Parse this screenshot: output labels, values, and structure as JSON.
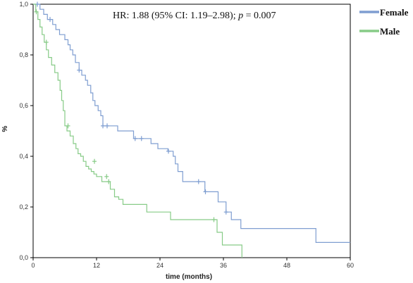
{
  "chart_data": {
    "type": "line",
    "subtype": "kaplan-meier step",
    "annotation_prefix": "HR: 1.88 (95% CI: 1.19–2.98); ",
    "annotation_p_symbol": "p",
    "annotation_p_value": " = 0.007",
    "xlabel": "time (months)",
    "ylabel": "%",
    "xlim": [
      0,
      60
    ],
    "ylim": [
      0,
      1
    ],
    "x_ticks": [
      0,
      12,
      24,
      36,
      48,
      60
    ],
    "x_tick_labels": [
      "0",
      "12",
      "24",
      "36",
      "48",
      "60"
    ],
    "y_ticks": [
      0,
      0.2,
      0.4,
      0.6,
      0.8,
      1.0
    ],
    "y_tick_labels": [
      "0,0",
      "0,2",
      "0,4",
      "0,6",
      "0,8",
      "1,0"
    ],
    "legend_position": "top-right, outside plot",
    "series": [
      {
        "name": "Female",
        "color": "#7f9ed1",
        "x": [
          0,
          0.8,
          1.3,
          2.0,
          2.7,
          3.7,
          4.3,
          5.0,
          6.0,
          6.6,
          7.0,
          7.5,
          8.0,
          8.7,
          9.2,
          9.9,
          10.3,
          10.9,
          11.3,
          11.7,
          12.3,
          12.8,
          13.2,
          14.5,
          16.0,
          19.0,
          20.0,
          20.8,
          22.3,
          23.6,
          25.5,
          26.5,
          26.9,
          27.4,
          28.3,
          31.0,
          32.5,
          33.7,
          35.0,
          36.5,
          37.5,
          39.3,
          53.5,
          60
        ],
        "y": [
          1.0,
          1.0,
          0.98,
          0.96,
          0.94,
          0.92,
          0.9,
          0.88,
          0.86,
          0.84,
          0.82,
          0.8,
          0.77,
          0.74,
          0.72,
          0.7,
          0.68,
          0.65,
          0.62,
          0.6,
          0.58,
          0.56,
          0.52,
          0.52,
          0.5,
          0.47,
          0.47,
          0.47,
          0.45,
          0.43,
          0.42,
          0.4,
          0.37,
          0.34,
          0.3,
          0.3,
          0.26,
          0.26,
          0.22,
          0.18,
          0.15,
          0.115,
          0.06,
          0.06
        ],
        "censored": [
          [
            0.8,
            1.0
          ],
          [
            3.2,
            0.94
          ],
          [
            8.7,
            0.74
          ],
          [
            13.2,
            0.52
          ],
          [
            14.0,
            0.52
          ],
          [
            19.3,
            0.47
          ],
          [
            20.5,
            0.47
          ],
          [
            25.6,
            0.42
          ],
          [
            31.3,
            0.3
          ],
          [
            32.6,
            0.26
          ],
          [
            36.5,
            0.18
          ]
        ]
      },
      {
        "name": "Male",
        "color": "#87cb87",
        "x": [
          0,
          0.5,
          0.9,
          1.3,
          1.7,
          2.1,
          2.5,
          2.9,
          3.5,
          4.1,
          4.7,
          5.1,
          5.4,
          5.7,
          6.0,
          6.4,
          7.0,
          7.6,
          8.1,
          8.5,
          9.0,
          9.5,
          10.0,
          10.5,
          11.0,
          11.5,
          12.0,
          12.5,
          13.0,
          14.0,
          14.6,
          15.4,
          16.2,
          17.0,
          21.5,
          26.0,
          34.2,
          34.8,
          35.8,
          39.5
        ],
        "y": [
          1.0,
          0.97,
          0.94,
          0.91,
          0.88,
          0.85,
          0.82,
          0.79,
          0.76,
          0.73,
          0.7,
          0.66,
          0.62,
          0.58,
          0.52,
          0.5,
          0.48,
          0.45,
          0.43,
          0.41,
          0.4,
          0.38,
          0.36,
          0.35,
          0.34,
          0.33,
          0.32,
          0.32,
          0.3,
          0.3,
          0.27,
          0.24,
          0.23,
          0.21,
          0.18,
          0.15,
          0.15,
          0.1,
          0.05,
          0.0
        ],
        "censored": [
          [
            0.6,
            0.97
          ],
          [
            2.5,
            0.85
          ],
          [
            6.6,
            0.52
          ],
          [
            11.6,
            0.38
          ],
          [
            13.9,
            0.32
          ],
          [
            14.3,
            0.3
          ],
          [
            34.2,
            0.15
          ]
        ]
      }
    ]
  }
}
